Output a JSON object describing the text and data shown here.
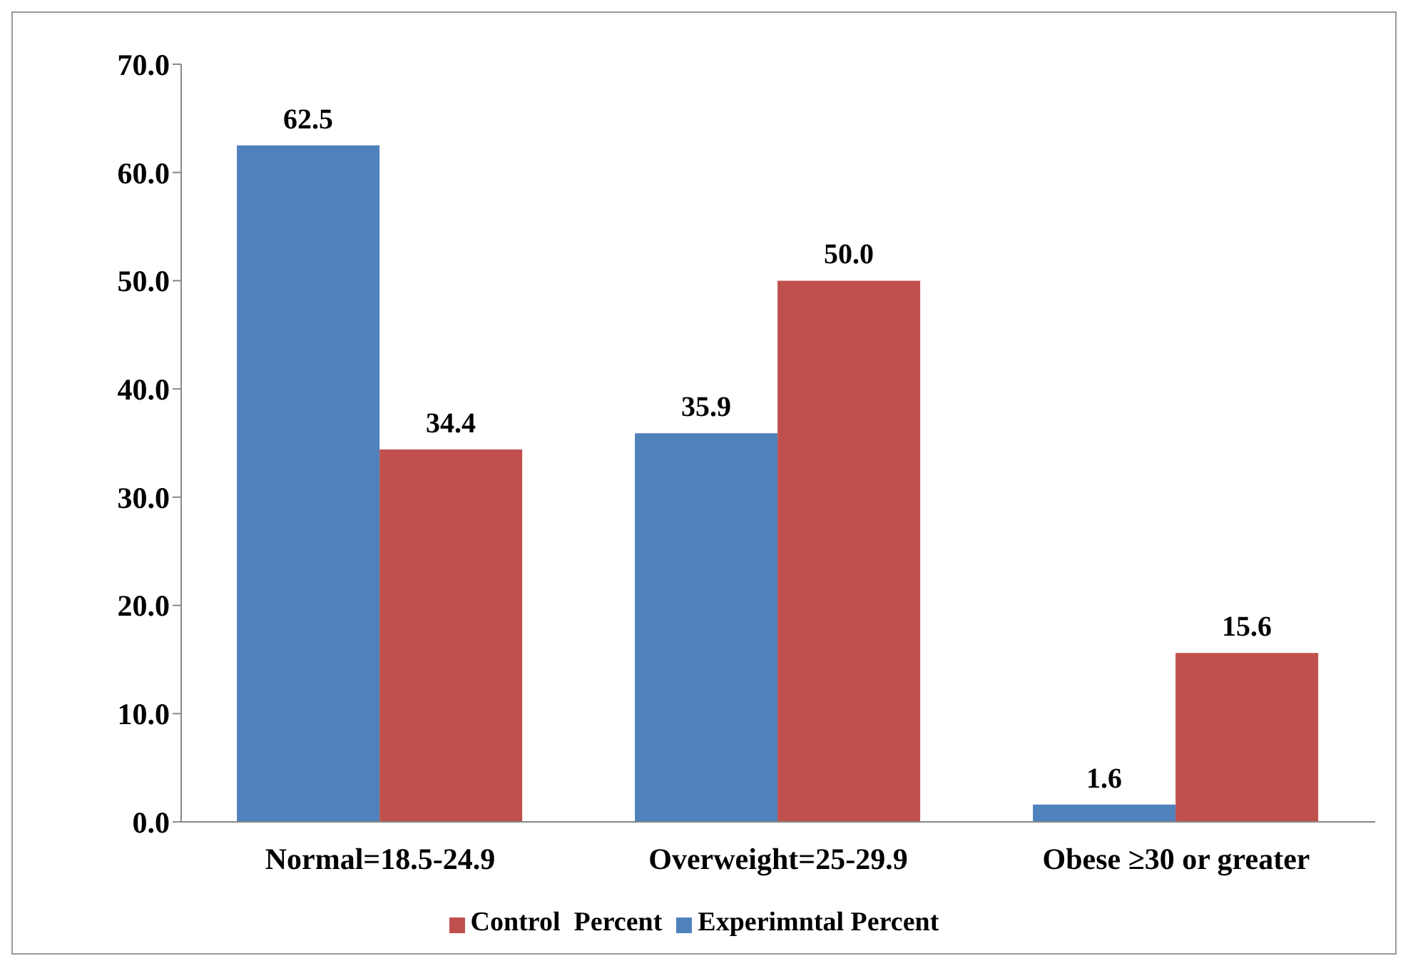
{
  "chart_data": {
    "type": "bar",
    "categories": [
      "Normal=18.5-24.9",
      "Overweight=25-29.9",
      "Obese ≥30 or greater"
    ],
    "series": [
      {
        "name": "Experimntal Percent",
        "color": "#4f81bd",
        "values": [
          62.5,
          35.9,
          1.6
        ],
        "value_labels": [
          "62.5",
          "35.9",
          "1.6"
        ]
      },
      {
        "name": "Control  Percent",
        "color": "#c0504d",
        "values": [
          34.4,
          50.0,
          15.6
        ],
        "value_labels": [
          "34.4",
          "50.0",
          "15.6"
        ]
      }
    ],
    "ylim": [
      0,
      70
    ],
    "yticks": [
      {
        "value": 0,
        "label": "0.0"
      },
      {
        "value": 10,
        "label": "10.0"
      },
      {
        "value": 20,
        "label": "20.0"
      },
      {
        "value": 30,
        "label": "30.0"
      },
      {
        "value": 40,
        "label": "40.0"
      },
      {
        "value": 50,
        "label": "50.0"
      },
      {
        "value": 60,
        "label": "60.0"
      },
      {
        "value": 70,
        "label": "70.0"
      }
    ],
    "grid": false,
    "legend": "bottom"
  }
}
